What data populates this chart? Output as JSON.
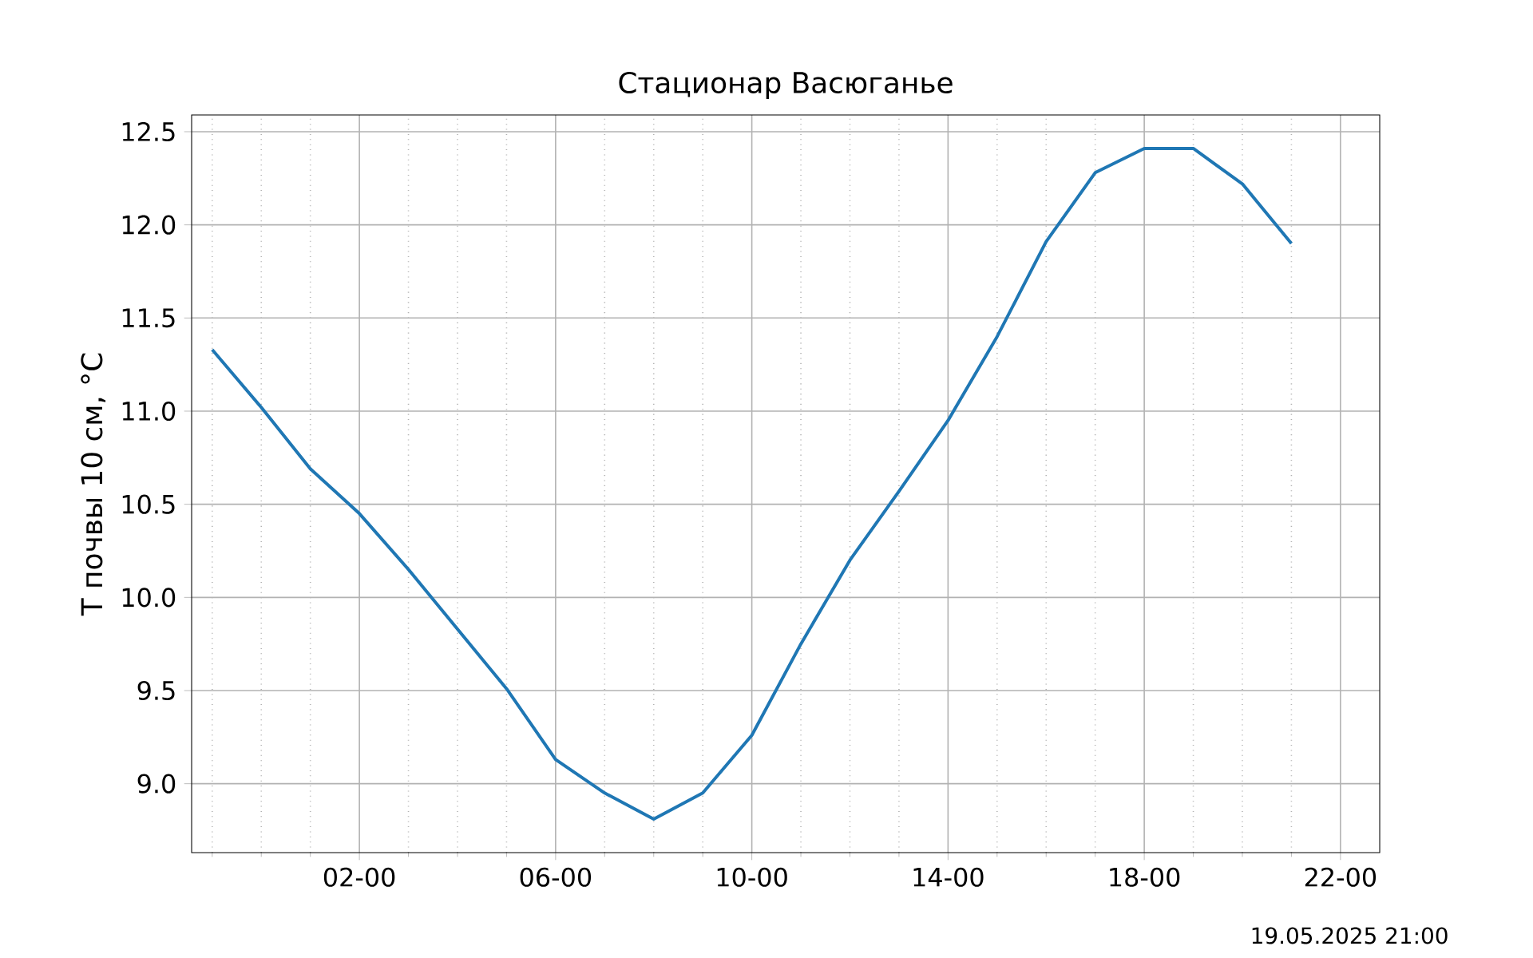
{
  "chart_data": {
    "type": "line",
    "title": "Стационар  Васюганье",
    "ylabel": "T почвы 10 см, °C",
    "annotations": [
      "19.05.2025 21:00"
    ],
    "categories": [
      null,
      null,
      null,
      "02-00",
      null,
      null,
      null,
      "06-00",
      null,
      null,
      null,
      "10-00",
      null,
      null,
      null,
      "14-00",
      null,
      null,
      null,
      "18-00",
      null,
      null,
      null,
      "22-00"
    ],
    "series": [
      {
        "color": "#1f77b4",
        "values": [
          11.33,
          11.02,
          10.69,
          10.45,
          10.15,
          9.83,
          9.51,
          9.13,
          8.95,
          8.81,
          8.95,
          9.26,
          9.75,
          10.2,
          10.57,
          10.95,
          11.4,
          11.91,
          12.28,
          12.41,
          12.41,
          12.22,
          11.9,
          null
        ]
      }
    ],
    "ylim": [
      8.63,
      12.59
    ],
    "yticks": [
      {
        "value": 9,
        "label": "9.0"
      },
      9.5,
      {
        "value": 10,
        "label": "10.0"
      },
      10.5,
      {
        "value": 11,
        "label": "11.0"
      },
      11.5,
      {
        "value": 12,
        "label": "12.0"
      },
      12.5
    ],
    "grid": true
  }
}
